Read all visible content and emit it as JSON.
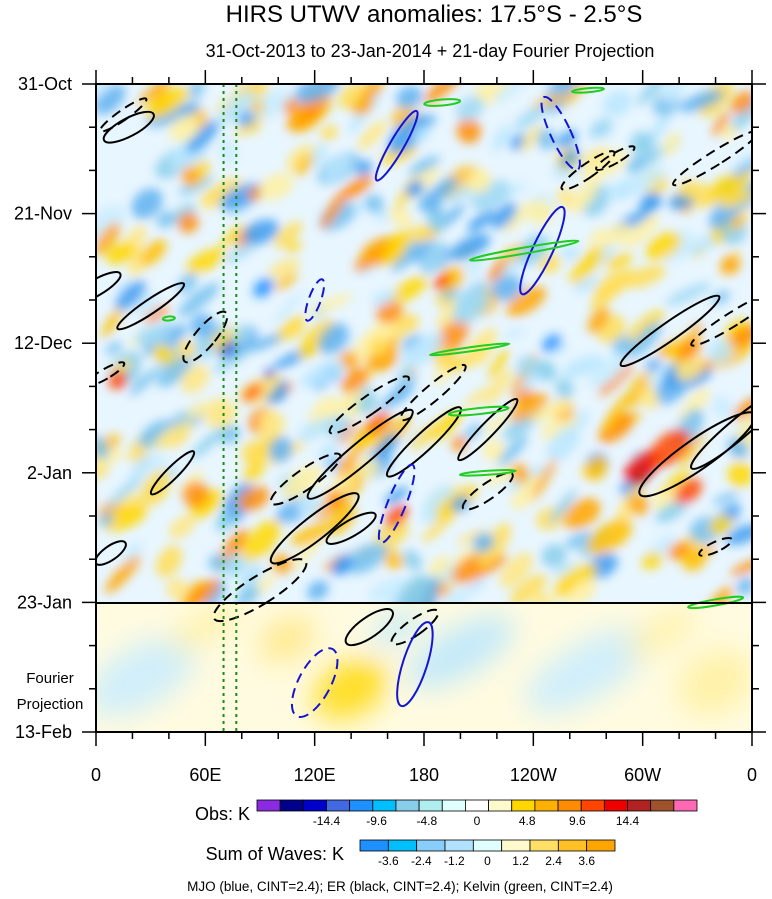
{
  "chart_data": {
    "type": "heatmap",
    "title": "HIRS UTWV anomalies: 17.5°S - 2.5°S",
    "subtitle": "31-Oct-2013 to 23-Jan-2014 + 21-day Fourier Projection",
    "x_tick_labels": [
      "0",
      "60E",
      "120E",
      "180",
      "120W",
      "60W",
      "0"
    ],
    "x_range_deg_east": [
      0,
      360
    ],
    "y_tick_labels": [
      "31-Oct",
      "21-Nov",
      "12-Dec",
      "2-Jan",
      "23-Jan",
      "13-Feb"
    ],
    "y_range_days": [
      0,
      105
    ],
    "projection_start_day": 84,
    "projection_label_line1": "Fourier",
    "projection_label_line2": "Projection",
    "vertical_marker_lons": [
      70,
      77
    ],
    "obs_colorbar": {
      "label": "Obs: K",
      "ticks": [
        "-14.4",
        "-9.6",
        "-4.8",
        "0",
        "4.8",
        "9.6",
        "14.4"
      ],
      "colors": [
        "#8a2be2",
        "#00008b",
        "#0000cd",
        "#4169e1",
        "#1e90ff",
        "#00bfff",
        "#87ceeb",
        "#afeeee",
        "#e0ffff",
        "#ffffff",
        "#fffacd",
        "#ffd700",
        "#ffb000",
        "#ff8c00",
        "#ff4500",
        "#ee0000",
        "#b22222",
        "#a0522d",
        "#ff69b4"
      ]
    },
    "waves_colorbar": {
      "label": "Sum of Waves: K",
      "ticks": [
        "-3.6",
        "-2.4",
        "-1.2",
        "0",
        "1.2",
        "2.4",
        "3.6"
      ],
      "colors": [
        "#1e90ff",
        "#00bfff",
        "#87cefa",
        "#b0e2ff",
        "#e0ffff",
        "#fffacd",
        "#ffe066",
        "#ffc125",
        "#ffa500"
      ]
    },
    "footer": "MJO (blue, CINT=2.4); ER (black, CINT=2.4); Kelvin (green, CINT=2.4)",
    "series": [
      {
        "name": "MJO",
        "color": "#1414d2"
      },
      {
        "name": "ER",
        "color": "#000000"
      },
      {
        "name": "Kelvin",
        "color": "#22cc22"
      }
    ]
  }
}
